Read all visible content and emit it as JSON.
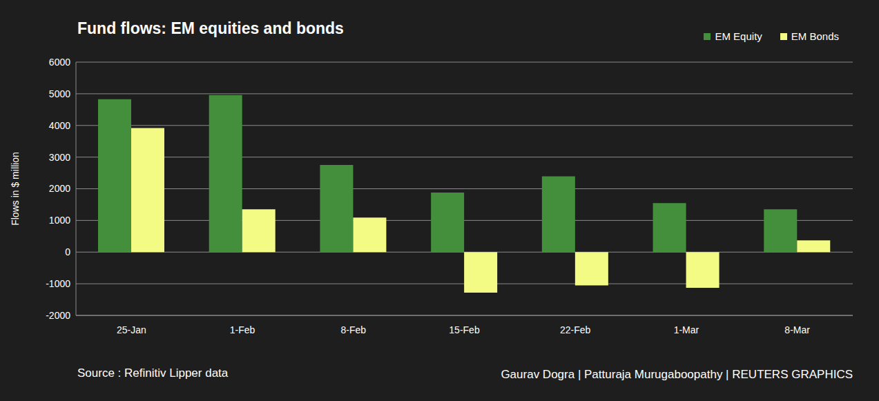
{
  "chart_data": {
    "type": "bar",
    "title": "Fund flows: EM equities and bonds",
    "ylabel": "Flows in $ million",
    "annotations": [
      "Source : Refinitiv Lipper data",
      "Gaurav Dogra | Patturaja Murugaboopathy | REUTERS GRAPHICS"
    ],
    "categories": [
      "25-Jan",
      "1-Feb",
      "8-Feb",
      "15-Feb",
      "22-Feb",
      "1-Mar",
      "8-Mar"
    ],
    "series": [
      {
        "name": "EM Equity",
        "color": "#438f3c",
        "values": [
          4830,
          4960,
          2750,
          1880,
          2390,
          1550,
          1350
        ]
      },
      {
        "name": "EM Bonds",
        "color": "#f3fb84",
        "values": [
          3920,
          1350,
          1090,
          -1280,
          -1050,
          -1130,
          370
        ]
      }
    ],
    "ylim": [
      -2000,
      6000
    ],
    "yticks": [
      -2000,
      -1000,
      0,
      1000,
      2000,
      3000,
      4000,
      5000,
      6000
    ],
    "grid": true,
    "legend": "upper right"
  }
}
